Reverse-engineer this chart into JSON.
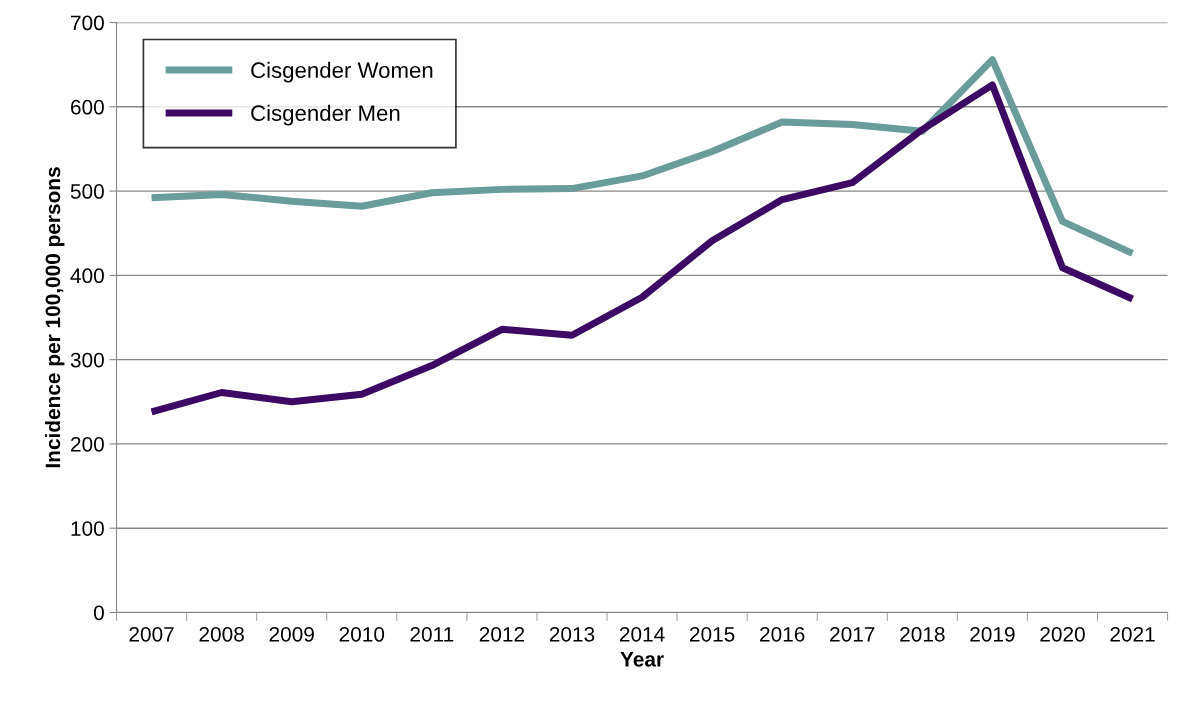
{
  "chart_data": {
    "type": "line",
    "xlabel": "Year",
    "ylabel": "Incidence per 100,000 persons",
    "categories": [
      "2007",
      "2008",
      "2009",
      "2010",
      "2011",
      "2012",
      "2013",
      "2014",
      "2015",
      "2016",
      "2017",
      "2018",
      "2019",
      "2020",
      "2021"
    ],
    "series": [
      {
        "name": "Cisgender Women",
        "color": "#6a9c9c",
        "values": [
          492,
          496,
          488,
          482,
          498,
          502,
          503,
          518,
          547,
          582,
          579,
          571,
          656,
          464,
          426
        ]
      },
      {
        "name": "Cisgender Men",
        "color": "#3c0a63",
        "values": [
          238,
          261,
          250,
          259,
          293,
          336,
          329,
          374,
          441,
          490,
          510,
          573,
          626,
          409,
          372
        ]
      }
    ],
    "ylim": [
      0,
      700
    ],
    "yticks": [
      0,
      100,
      200,
      300,
      400,
      500,
      600,
      700
    ],
    "grid": "y",
    "legend": "top left",
    "marker": "none",
    "line_style": "solid"
  }
}
